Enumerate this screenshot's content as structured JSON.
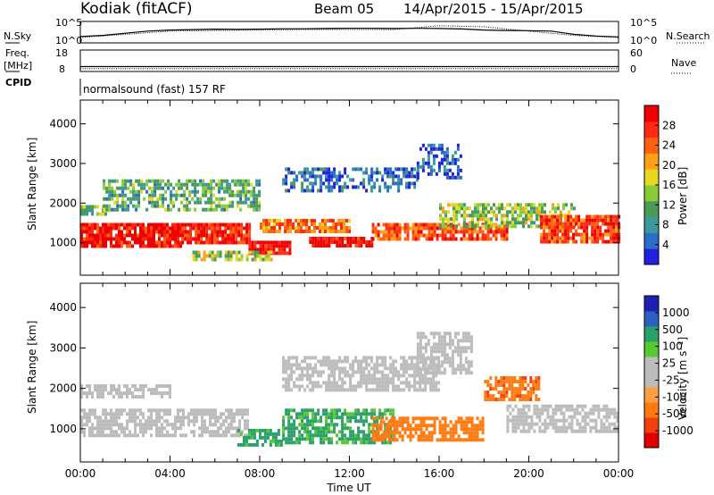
{
  "header": {
    "station": "Kodiak (fitACF)",
    "beam": "Beam 05",
    "date_range": "14/Apr/2015 - 15/Apr/2015"
  },
  "mode_label": "normalsound (fast) 157 RF",
  "chart_data": [
    {
      "type": "line",
      "panel": "noise",
      "left_label": "N.Sky",
      "right_label": "N.Search",
      "left_ticks": [
        "10^5",
        "10^0"
      ],
      "right_ticks": [
        "10^5",
        "10^0"
      ],
      "x_label_times": [
        "00:00",
        "04:00",
        "08:00",
        "12:00",
        "16:00",
        "20:00",
        "00:00"
      ],
      "series": [
        {
          "name": "N.Sky",
          "x": [
            0,
            1,
            2,
            3,
            4,
            5,
            6,
            7,
            8,
            9,
            10,
            11,
            12,
            13,
            14,
            15,
            16,
            17,
            18,
            19,
            20,
            21,
            22,
            23,
            24
          ],
          "values": [
            0.3,
            0.35,
            0.45,
            0.55,
            0.6,
            0.62,
            0.64,
            0.63,
            0.64,
            0.66,
            0.66,
            0.67,
            0.68,
            0.68,
            0.67,
            0.68,
            0.67,
            0.65,
            0.6,
            0.58,
            0.57,
            0.55,
            0.4,
            0.32,
            0.28
          ]
        },
        {
          "name": "N.Search",
          "x": [
            0,
            2,
            4,
            6,
            8,
            10,
            12,
            14,
            16,
            18,
            20,
            22,
            24
          ],
          "values": [
            0.25,
            0.4,
            0.55,
            0.58,
            0.6,
            0.62,
            0.63,
            0.62,
            0.8,
            0.75,
            0.55,
            0.35,
            0.25
          ]
        }
      ]
    },
    {
      "type": "line",
      "panel": "frequency",
      "left_label": "Freq.",
      "left_unit": "[MHz]",
      "left_ticks": [
        "18",
        "8"
      ],
      "right_label": "Nave",
      "right_ticks": [
        "60",
        "0"
      ],
      "cpid_label": "CPID",
      "series": [
        {
          "name": "Freq.",
          "x": [
            0,
            24
          ],
          "values": [
            10.3,
            10.3
          ]
        },
        {
          "name": "Nave",
          "x": [
            0,
            24
          ],
          "values": [
            8,
            8
          ]
        }
      ]
    },
    {
      "type": "heatmap",
      "panel": "power",
      "ylabel": "Slant Range [km]",
      "y_ticks": [
        1000,
        2000,
        3000,
        4000
      ],
      "ylim": [
        180,
        4600
      ],
      "xlim": [
        0,
        24
      ],
      "colorbar_label": "Power [dB]",
      "colorbar_ticks": [
        "28",
        "24",
        "20",
        "16",
        "12",
        "8",
        "4"
      ],
      "colorscale": [
        "#2020e0",
        "#2a6cc8",
        "#3a9a9a",
        "#4a9a58",
        "#88cc38",
        "#e8d820",
        "#ffa018",
        "#ff6010",
        "#ff2a10",
        "#ee0000"
      ],
      "echo_regions": [
        {
          "t": [
            0,
            4.5
          ],
          "r": [
            900,
            1500
          ],
          "level": 0.92
        },
        {
          "t": [
            0,
            1.2
          ],
          "r": [
            1750,
            1950
          ],
          "level": 0.4
        },
        {
          "t": [
            4.5,
            7.5
          ],
          "r": [
            1000,
            1500
          ],
          "level": 0.88
        },
        {
          "t": [
            7.5,
            9.3
          ],
          "r": [
            700,
            1050
          ],
          "level": 0.97
        },
        {
          "t": [
            10.2,
            13
          ],
          "r": [
            900,
            1150
          ],
          "level": 0.95
        },
        {
          "t": [
            8,
            12
          ],
          "r": [
            1300,
            1600
          ],
          "level": 0.72
        },
        {
          "t": [
            13,
            19
          ],
          "r": [
            1050,
            1500
          ],
          "level": 0.8
        },
        {
          "t": [
            16,
            22
          ],
          "r": [
            1400,
            2000
          ],
          "level": 0.45
        },
        {
          "t": [
            20.5,
            24
          ],
          "r": [
            1000,
            1700
          ],
          "level": 0.82
        },
        {
          "t": [
            5,
            8.5
          ],
          "r": [
            600,
            800
          ],
          "level": 0.5
        },
        {
          "t": [
            1,
            8
          ],
          "r": [
            1800,
            2600
          ],
          "level": 0.35
        },
        {
          "t": [
            9,
            15
          ],
          "r": [
            2300,
            2900
          ],
          "level": 0.15
        },
        {
          "t": [
            15,
            17
          ],
          "r": [
            2600,
            3500
          ],
          "level": 0.12
        }
      ]
    },
    {
      "type": "heatmap",
      "panel": "velocity",
      "ylabel": "Slant Range [km]",
      "y_ticks": [
        1000,
        2000,
        3000,
        4000
      ],
      "ylim": [
        180,
        4600
      ],
      "xlim": [
        0,
        24
      ],
      "xlabel": "Time UT",
      "x_ticks": [
        "00:00",
        "04:00",
        "08:00",
        "12:00",
        "16:00",
        "20:00",
        "00:00"
      ],
      "colorbar_label": "Velocity [m s⁻¹]",
      "colorbar_ticks": [
        "1000",
        "500",
        "100",
        "25",
        "-25",
        "-100",
        "-500",
        "-1000"
      ],
      "colorscale": [
        "#e00000",
        "#f04010",
        "#ff7a10",
        "#ffa040",
        "#bcbcbc",
        "#bcbcbc",
        "#58c830",
        "#28a068",
        "#2a60c0",
        "#2020b0"
      ],
      "echo_regions": [
        {
          "t": [
            0,
            7.5
          ],
          "r": [
            800,
            1500
          ],
          "value": 0
        },
        {
          "t": [
            0,
            4
          ],
          "r": [
            1800,
            2100
          ],
          "value": 0
        },
        {
          "t": [
            7,
            9
          ],
          "r": [
            600,
            1000
          ],
          "value": 150
        },
        {
          "t": [
            9,
            14
          ],
          "r": [
            700,
            1500
          ],
          "value": 120
        },
        {
          "t": [
            13,
            18
          ],
          "r": [
            750,
            1300
          ],
          "value": -200
        },
        {
          "t": [
            18,
            20.5
          ],
          "r": [
            1700,
            2300
          ],
          "value": -400
        },
        {
          "t": [
            9,
            16
          ],
          "r": [
            2000,
            2800
          ],
          "value": 0
        },
        {
          "t": [
            19,
            24
          ],
          "r": [
            900,
            1600
          ],
          "value": 0
        },
        {
          "t": [
            15,
            17.5
          ],
          "r": [
            2400,
            3400
          ],
          "value": 0
        }
      ]
    }
  ]
}
